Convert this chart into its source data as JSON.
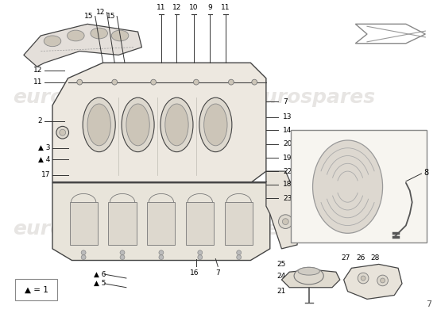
{
  "bg_color": "#ffffff",
  "watermark_text": "eurospares",
  "watermark_color": "#d0ccc8",
  "legend_text": "▲ = 1",
  "page_number": "7",
  "line_color": "#444444",
  "part_line_color": "#222222",
  "fill_light": "#ede8e0",
  "fill_mid": "#ddd8ce",
  "fill_dark": "#ccc5b8"
}
